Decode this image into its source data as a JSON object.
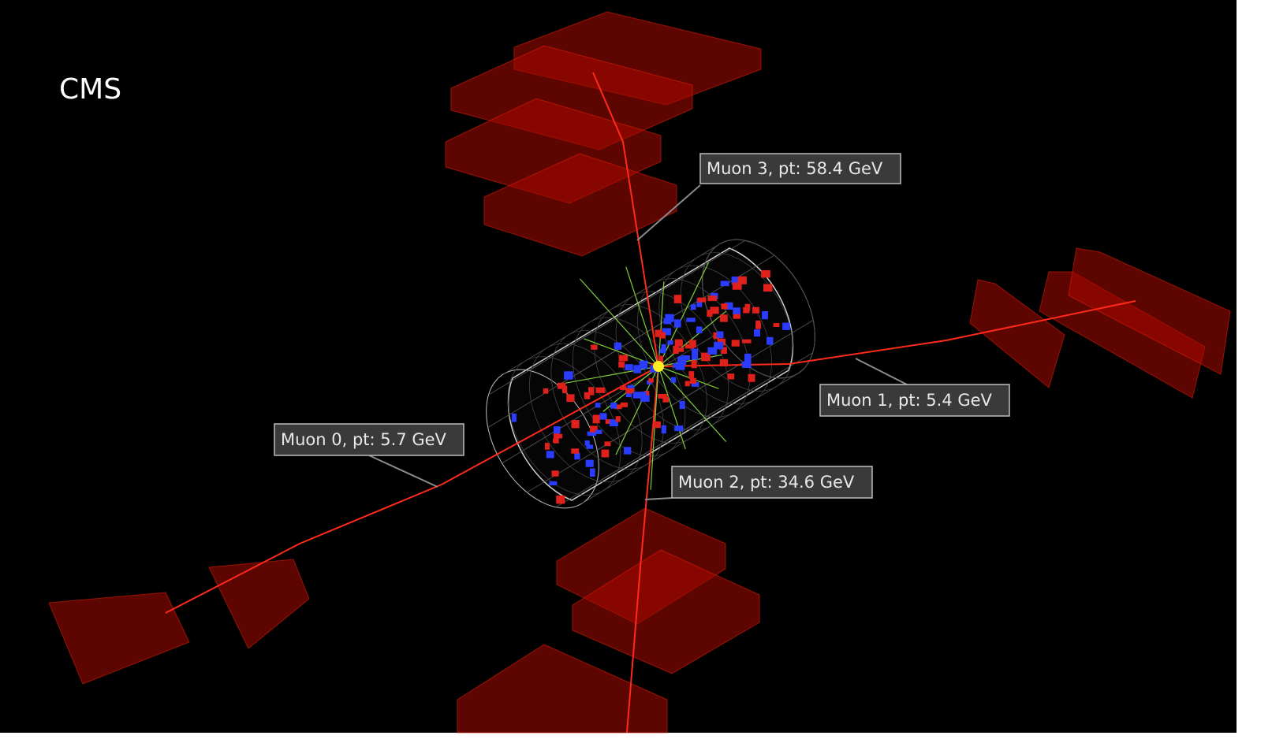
{
  "title": "CMS",
  "labels": [
    "Muon 3, pt: 58.4 GeV",
    "Muon 1, pt: 5.4 GeV",
    "Muon 0, pt: 5.7 GeV",
    "Muon 2, pt: 34.6 GeV"
  ]
}
